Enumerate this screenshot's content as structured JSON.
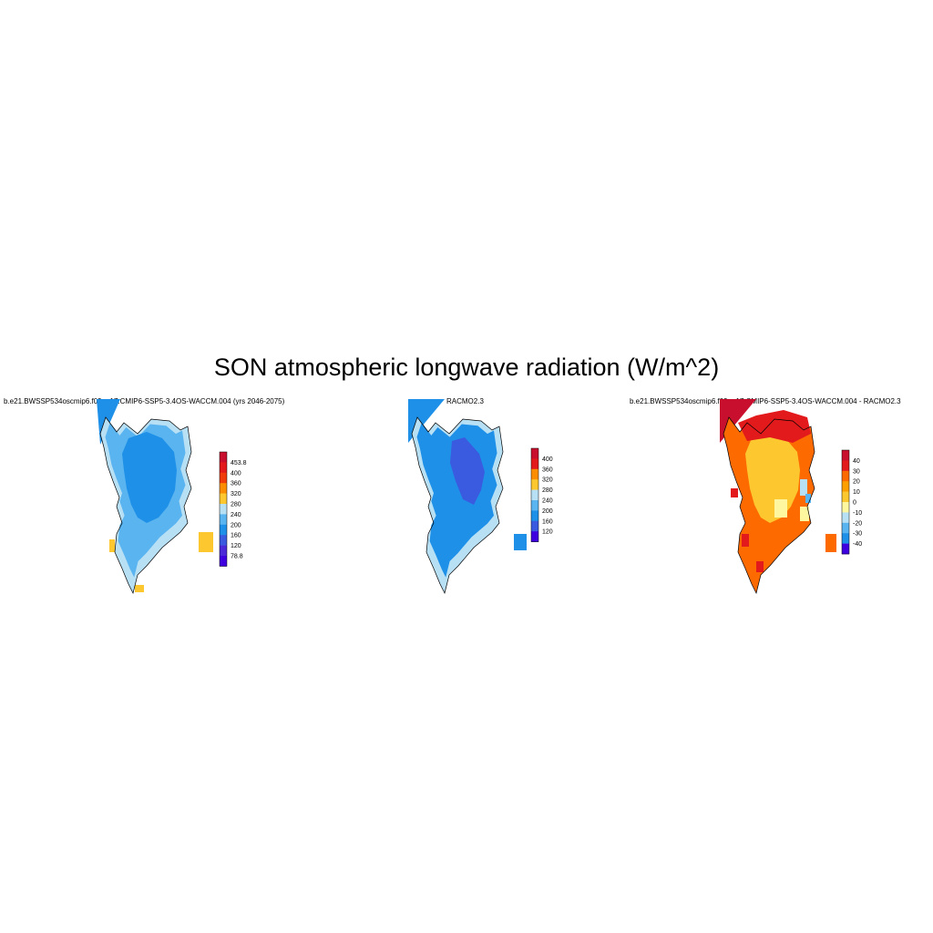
{
  "figure": {
    "title": "SON atmospheric longwave radiation (W/m^2)"
  },
  "panels": [
    {
      "title": "b.e21.BWSSP534oscmip6.f09_g17.CMIP6-SSP5-3.4OS-WACCM.004 (yrs 2046-2075)",
      "colorbar": {
        "labels": [
          "453.8",
          "400",
          "360",
          "320",
          "280",
          "240",
          "200",
          "160",
          "120",
          "78.8"
        ],
        "colors": [
          "#c8102e",
          "#e31a1c",
          "#f03b0a",
          "#fd8d00",
          "#fdc82f",
          "#b8e0f5",
          "#5ab4f0",
          "#1e90e8",
          "#3a5be0",
          "#4b2bd8",
          "#3f00e0"
        ]
      }
    },
    {
      "title": "RACMO2.3",
      "colorbar": {
        "labels": [
          "400",
          "360",
          "320",
          "280",
          "240",
          "200",
          "160",
          "120"
        ],
        "colors": [
          "#c8102e",
          "#e31a1c",
          "#fd8d00",
          "#fdc82f",
          "#b8e0f5",
          "#5ab4f0",
          "#1e90e8",
          "#3a5be0",
          "#3f00e0"
        ]
      }
    },
    {
      "title": "b.e21.BWSSP534oscmip6.f09_g17.CMIP6-SSP5-3.4OS-WACCM.004 - RACMO2.3",
      "colorbar": {
        "labels": [
          "40",
          "30",
          "20",
          "10",
          "0",
          "-10",
          "-20",
          "-30",
          "-40"
        ],
        "colors": [
          "#c8102e",
          "#e31a1c",
          "#fd6a00",
          "#fd9f00",
          "#fdc82f",
          "#fff7a0",
          "#b8e0f5",
          "#5ab4f0",
          "#1e90e8",
          "#3f00e0"
        ]
      }
    }
  ]
}
